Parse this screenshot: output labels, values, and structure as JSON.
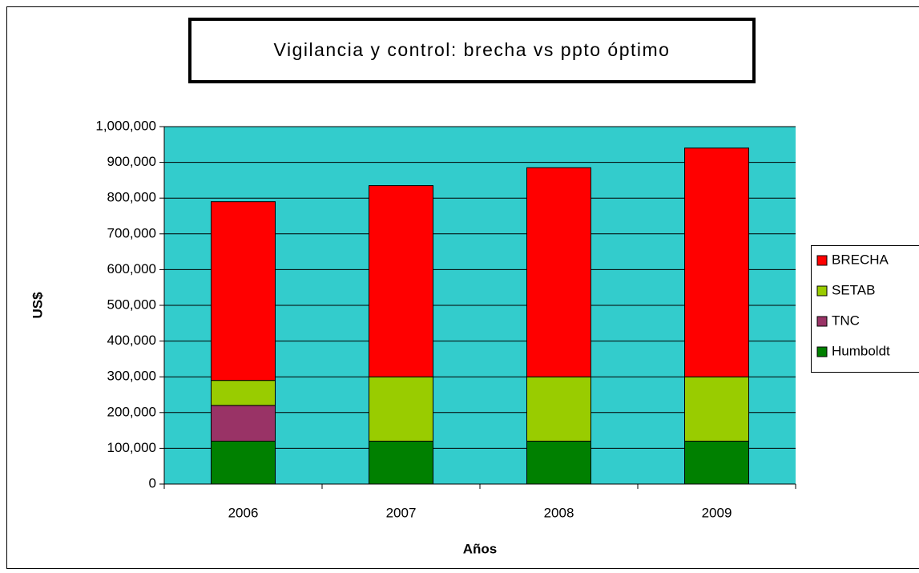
{
  "chart_data": {
    "type": "stacked_bar",
    "title": "Vigilancia y control: brecha vs ppto óptimo",
    "x_label": "Años",
    "y_label": "US$",
    "categories": [
      "2006",
      "2007",
      "2008",
      "2009"
    ],
    "series": [
      {
        "name": "Humboldt",
        "color": "#008000",
        "values": [
          120000,
          120000,
          120000,
          120000
        ]
      },
      {
        "name": "TNC",
        "color": "#993366",
        "values": [
          100000,
          0,
          0,
          0
        ]
      },
      {
        "name": "SETAB",
        "color": "#99CC00",
        "values": [
          70000,
          180000,
          180000,
          180000
        ]
      },
      {
        "name": "BRECHA",
        "color": "#FF0000",
        "values": [
          500000,
          535000,
          585000,
          640000
        ]
      }
    ],
    "ylim": [
      0,
      1000000
    ],
    "yticks": [
      0,
      {
        "value": 100000,
        "label": "100,000"
      },
      {
        "value": 200000,
        "label": "200,000"
      },
      {
        "value": 300000,
        "label": "300,000"
      },
      {
        "value": 400000,
        "label": "400,000"
      },
      {
        "value": 500000,
        "label": "500,000"
      },
      {
        "value": 600000,
        "label": "600,000"
      },
      {
        "value": 700000,
        "label": "700,000"
      },
      {
        "value": 800000,
        "label": "800,000"
      },
      {
        "value": 900000,
        "label": "900,000"
      },
      {
        "value": 1000000,
        "label": "1,000,000"
      }
    ],
    "grid": true,
    "plot_background": "#33CCCC",
    "legend": "right"
  }
}
